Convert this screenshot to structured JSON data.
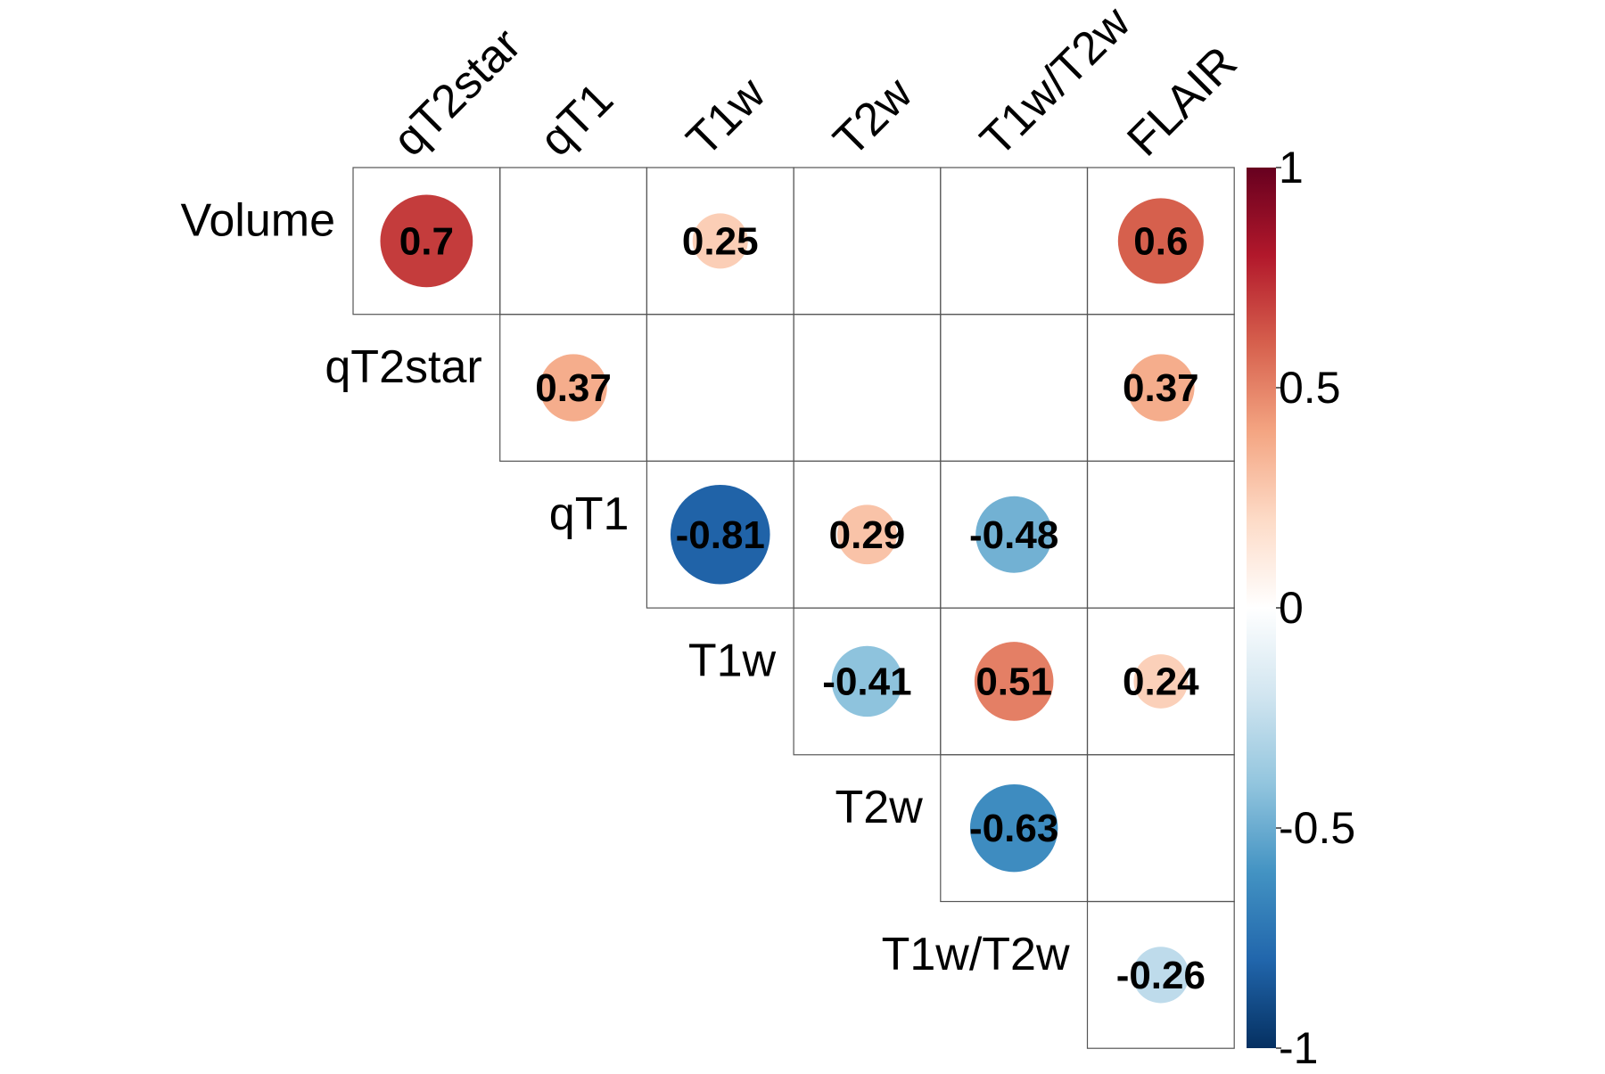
{
  "chart_data": {
    "type": "heatmap",
    "style": "correlation-circles-upper-triangle",
    "rows": [
      "Volume",
      "qT2star",
      "qT1",
      "T1w",
      "T2w",
      "T1w/T2w"
    ],
    "columns": [
      "qT2star",
      "qT1",
      "T1w",
      "T2w",
      "T1w/T2w",
      "FLAIR"
    ],
    "cells": [
      {
        "row": "Volume",
        "col": "qT2star",
        "value": 0.7,
        "label": "0.7"
      },
      {
        "row": "Volume",
        "col": "T1w",
        "value": 0.25,
        "label": "0.25"
      },
      {
        "row": "Volume",
        "col": "FLAIR",
        "value": 0.6,
        "label": "0.6"
      },
      {
        "row": "qT2star",
        "col": "qT1",
        "value": 0.37,
        "label": "0.37"
      },
      {
        "row": "qT2star",
        "col": "FLAIR",
        "value": 0.37,
        "label": "0.37"
      },
      {
        "row": "qT1",
        "col": "T1w",
        "value": -0.81,
        "label": "-0.81"
      },
      {
        "row": "qT1",
        "col": "T2w",
        "value": 0.29,
        "label": "0.29"
      },
      {
        "row": "qT1",
        "col": "T1w/T2w",
        "value": -0.48,
        "label": "-0.48"
      },
      {
        "row": "T1w",
        "col": "T2w",
        "value": -0.41,
        "label": "-0.41"
      },
      {
        "row": "T1w",
        "col": "T1w/T2w",
        "value": 0.51,
        "label": "0.51"
      },
      {
        "row": "T1w",
        "col": "FLAIR",
        "value": 0.24,
        "label": "0.24"
      },
      {
        "row": "T2w",
        "col": "T1w/T2w",
        "value": -0.63,
        "label": "-0.63"
      },
      {
        "row": "T1w/T2w",
        "col": "FLAIR",
        "value": -0.26,
        "label": "-0.26"
      }
    ],
    "colorbar": {
      "range": [
        -1,
        1
      ],
      "ticks": [
        1,
        0.5,
        0,
        -0.5,
        -1
      ],
      "tick_labels": [
        "1",
        "0.5",
        "0",
        "-0.5",
        "-1"
      ],
      "colors": [
        "#053061",
        "#2166AC",
        "#4393C3",
        "#92C5DE",
        "#D1E5F0",
        "#FFFFFF",
        "#FDDBC7",
        "#F4A582",
        "#D6604D",
        "#B2182B",
        "#67001F"
      ]
    }
  }
}
